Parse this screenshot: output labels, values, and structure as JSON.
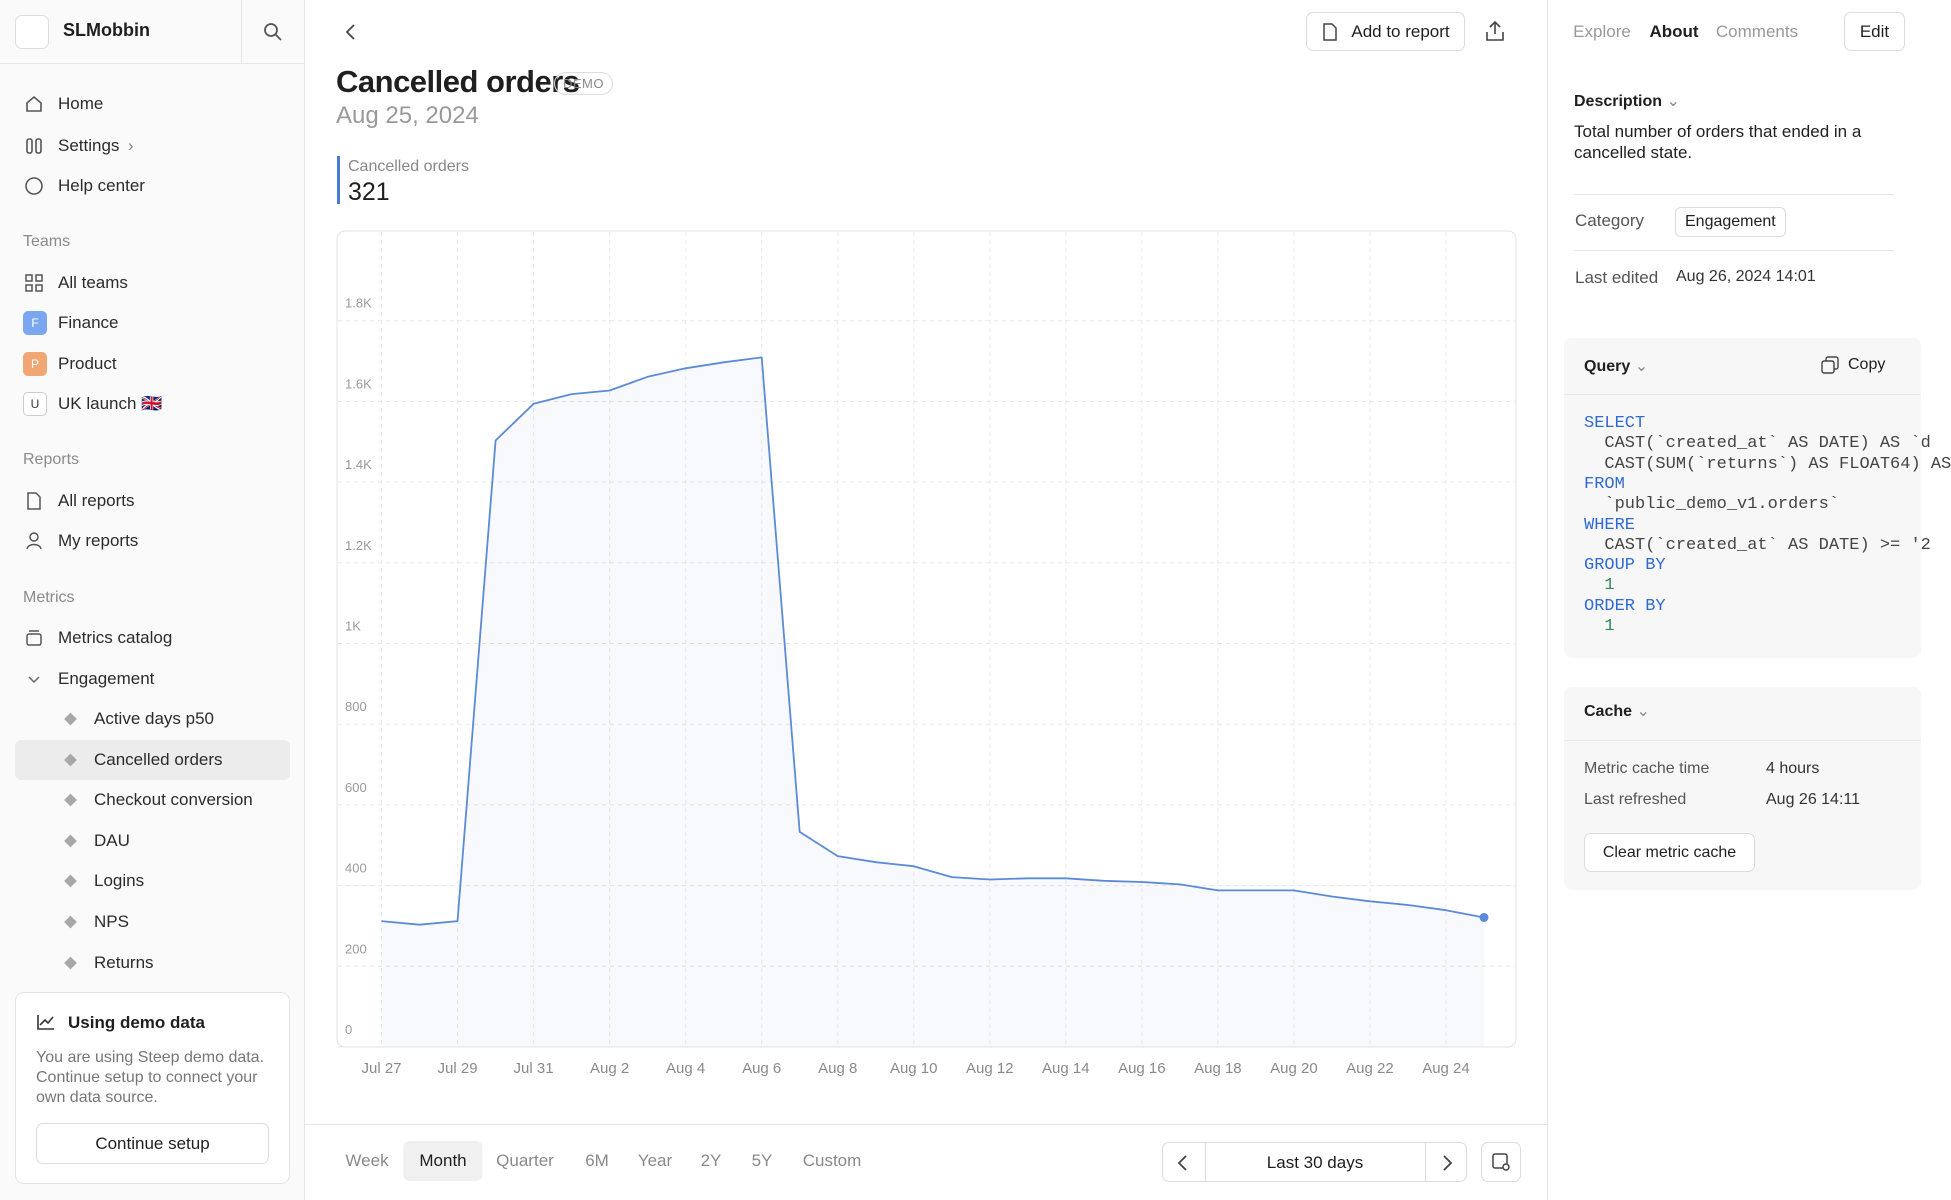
{
  "workspace": "SLMobbin",
  "nav": {
    "home": "Home",
    "settings": "Settings",
    "help": "Help center"
  },
  "teams": {
    "heading": "Teams",
    "items": [
      {
        "label": "All teams"
      },
      {
        "badge": "F",
        "label": "Finance"
      },
      {
        "badge": "P",
        "label": "Product"
      },
      {
        "badge": "U",
        "label": "UK launch 🇬🇧"
      }
    ]
  },
  "reports": {
    "heading": "Reports",
    "items": [
      "All reports",
      "My reports"
    ]
  },
  "metrics": {
    "heading": "Metrics",
    "catalog": "Metrics catalog",
    "group": "Engagement",
    "items": [
      "Active days p50",
      "Cancelled orders",
      "Checkout conversion",
      "DAU",
      "Logins",
      "NPS",
      "Returns"
    ],
    "active": 1
  },
  "demo": {
    "title": "Using demo data",
    "text": "You are using Steep demo data. Continue setup to connect your own data source.",
    "button": "Continue setup"
  },
  "header": {
    "add": "Add to report",
    "title": "Cancelled orders",
    "badge": "DEMO",
    "date": "Aug 25, 2024",
    "kpi_label": "Cancelled orders",
    "kpi_value": 321
  },
  "chart_data": {
    "type": "line",
    "categories": [
      "Jul 27",
      null,
      "Jul 29",
      null,
      "Jul 31",
      null,
      "Aug 2",
      null,
      "Aug 4",
      null,
      "Aug 6",
      null,
      "Aug 8",
      null,
      "Aug 10",
      null,
      "Aug 12",
      null,
      "Aug 14",
      null,
      "Aug 16",
      null,
      "Aug 18",
      null,
      "Aug 20",
      null,
      "Aug 22",
      null,
      "Aug 24",
      null
    ],
    "series": [
      {
        "name": "Cancelled orders",
        "color": "#5b8bd6",
        "values": [
          312,
          303,
          312,
          1503,
          1594,
          1618,
          1627,
          1661,
          1682,
          1697,
          1709,
          533,
          473,
          458,
          448,
          421,
          415,
          418,
          418,
          412,
          409,
          403,
          388,
          388,
          388,
          373,
          361,
          352,
          339,
          321
        ]
      }
    ],
    "ylim": [
      0,
      2000
    ],
    "yticks": [
      0,
      200,
      400,
      600,
      800,
      {
        "value": 1000,
        "label": "1K"
      },
      {
        "value": 1200,
        "label": "1.2K"
      },
      {
        "value": 1400,
        "label": "1.4K"
      },
      {
        "value": 1600,
        "label": "1.6K"
      },
      {
        "value": 1800,
        "label": "1.8K"
      }
    ],
    "grid": true
  },
  "range": {
    "tabs": [
      "Week",
      "Month",
      "Quarter",
      "6M",
      "Year",
      "2Y",
      "5Y",
      "Custom"
    ],
    "selected": 1,
    "period": "Last 30 days"
  },
  "panel": {
    "tabs": [
      "Explore",
      "About",
      "Comments"
    ],
    "selected": 1,
    "edit": "Edit",
    "description_heading": "Description",
    "description": "Total number of orders that ended in a cancelled state.",
    "category_label": "Category",
    "category": "Engagement",
    "edited_label": "Last edited",
    "edited": "Aug 26, 2024 14:01",
    "query_heading": "Query",
    "copy": "Copy",
    "code": [
      "SELECT",
      "  CAST(`created_at` AS DATE) AS `d",
      "  CAST(SUM(`returns`) AS FLOAT64) AS",
      "FROM",
      "  `public_demo_v1.orders`",
      "WHERE",
      "  CAST(`created_at` AS DATE) >= '2",
      "GROUP BY",
      "  1",
      "ORDER BY",
      "  1"
    ],
    "cache_heading": "Cache",
    "cache_time_label": "Metric cache time",
    "cache_time": "4 hours",
    "refreshed_label": "Last refreshed",
    "refreshed": "Aug 26 14:11",
    "clear": "Clear metric cache"
  }
}
